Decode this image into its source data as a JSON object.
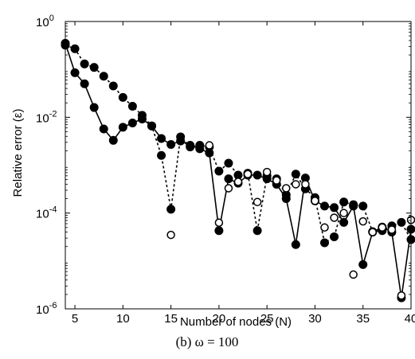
{
  "chart_data": {
    "type": "line",
    "title": "",
    "xlabel": "Number of nodes (N)",
    "ylabel": "Relative error (ε)",
    "xlim": [
      4,
      40
    ],
    "ylim": [
      1e-06,
      1
    ],
    "yscale": "log",
    "grid": false,
    "xticks": [
      5,
      10,
      15,
      20,
      25,
      30,
      35,
      40
    ],
    "yticks": [
      {
        "value": 1,
        "base": "10",
        "exp": "0"
      },
      {
        "value": 0.01,
        "base": "10",
        "exp": "-2"
      },
      {
        "value": 0.0001,
        "base": "10",
        "exp": "-4"
      },
      {
        "value": 1e-06,
        "base": "10",
        "exp": "-6"
      }
    ],
    "caption": "(b) ω = 100",
    "series": [
      {
        "style": "dotted-line-filled-circle",
        "x": [
          4,
          5,
          6,
          7,
          8,
          9,
          10,
          11,
          12,
          13,
          14,
          15,
          16,
          17,
          18,
          19,
          20,
          21,
          22,
          23,
          24,
          25,
          26,
          27,
          28,
          29,
          30,
          31,
          32,
          33,
          34,
          35,
          36,
          37,
          38,
          39,
          40
        ],
        "y": [
          0.32,
          0.27,
          0.13,
          0.11,
          0.072,
          0.045,
          0.026,
          0.017,
          0.011,
          0.0066,
          0.0016,
          0.00012,
          0.0039,
          0.0024,
          0.0026,
          0.0024,
          0.00075,
          0.0011,
          0.00062,
          0.00068,
          4.3e-05,
          0.0006,
          0.00052,
          0.00024,
          0.00065,
          0.00032,
          0.00021,
          2.4e-05,
          3.2e-05,
          0.00017,
          0.00015,
          0.00014,
          4.1e-05,
          4.3e-05,
          5.4e-05,
          6.4e-05,
          2.8e-05
        ]
      },
      {
        "style": "solid-line-filled-circle",
        "x": [
          4,
          5,
          6,
          7,
          8,
          9,
          10,
          11,
          12,
          13,
          14,
          15,
          16,
          17,
          18,
          19,
          20,
          21,
          22,
          23,
          24,
          25,
          26,
          27,
          28,
          29,
          30,
          31,
          32,
          33,
          34,
          35,
          36,
          37,
          38,
          39,
          40
        ],
        "y": [
          0.35,
          0.085,
          0.05,
          0.016,
          0.0057,
          0.0033,
          0.0062,
          0.0076,
          0.0092,
          0.0066,
          0.0036,
          0.0027,
          0.0032,
          0.0026,
          0.0022,
          0.0018,
          4.3e-05,
          0.00052,
          0.00042,
          0.00062,
          0.00062,
          0.00052,
          0.0004,
          0.0002,
          2.2e-05,
          0.00054,
          0.00018,
          0.00014,
          0.00013,
          6.4e-05,
          0.00014,
          8.4e-06,
          4e-05,
          5.1e-05,
          4e-05,
          1.7e-06,
          4.6e-05
        ]
      },
      {
        "style": "open-circle",
        "x": [
          15,
          19,
          20,
          21,
          22,
          23,
          24,
          25,
          26,
          27,
          28,
          29,
          30,
          31,
          32,
          33,
          34,
          35,
          36,
          37,
          38,
          39,
          40
        ],
        "y": [
          3.5e-05,
          0.0026,
          6.3e-05,
          0.00033,
          0.00045,
          0.00065,
          0.00017,
          0.00072,
          0.00048,
          0.00033,
          0.0004,
          0.0004,
          0.00018,
          5e-05,
          8e-05,
          0.0001,
          5.2e-06,
          6.7e-05,
          4e-05,
          5e-05,
          4.5e-05,
          1.9e-06,
          7.2e-05
        ]
      }
    ]
  }
}
